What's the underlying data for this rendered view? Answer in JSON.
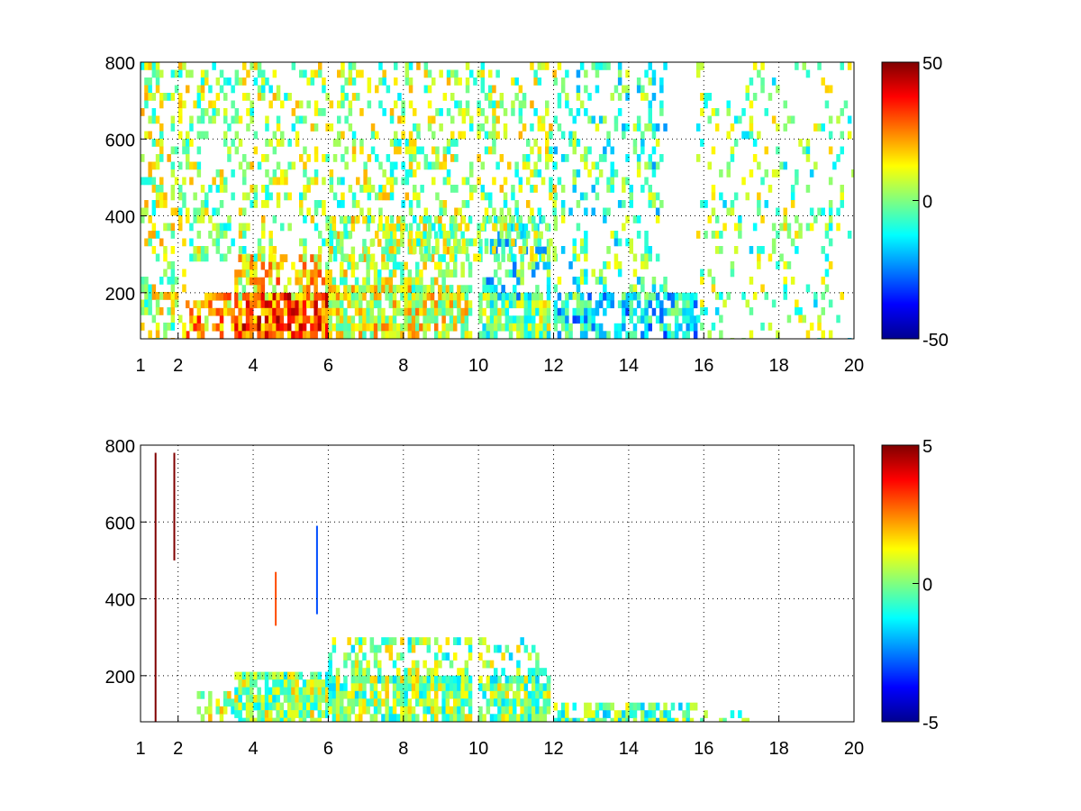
{
  "chart_data": [
    {
      "type": "heatmap",
      "title": "",
      "xlabel": "",
      "ylabel": "",
      "xlim": [
        1,
        20
      ],
      "ylim": [
        80,
        800
      ],
      "x_ticks": [
        1,
        2,
        4,
        6,
        8,
        10,
        12,
        14,
        16,
        18,
        20
      ],
      "y_ticks": [
        200,
        400,
        600,
        800
      ],
      "grid": true,
      "colormap": "jet",
      "colorbar": {
        "clim": [
          -50,
          50
        ],
        "ticks": [
          50,
          0,
          -50
        ]
      },
      "description_level": 50,
      "regions": [
        {
          "x": [
            2.2,
            3.5
          ],
          "y": [
            80,
            200
          ],
          "value": 20,
          "density": 0.6
        },
        {
          "x": [
            3.5,
            6.0
          ],
          "y": [
            80,
            200
          ],
          "value": 30,
          "density": 0.85
        },
        {
          "x": [
            3.5,
            6.0
          ],
          "y": [
            200,
            300
          ],
          "value": 15,
          "density": 0.6
        },
        {
          "x": [
            6.0,
            9.8
          ],
          "y": [
            80,
            220
          ],
          "value": 10,
          "density": 0.85
        },
        {
          "x": [
            6.0,
            9.8
          ],
          "y": [
            220,
            400
          ],
          "value": 5,
          "density": 0.5
        },
        {
          "x": [
            10.0,
            11.9
          ],
          "y": [
            80,
            200
          ],
          "value": 0,
          "density": 0.85
        },
        {
          "x": [
            10.0,
            11.9
          ],
          "y": [
            200,
            400
          ],
          "value": -10,
          "density": 0.5
        },
        {
          "x": [
            12.0,
            15.8
          ],
          "y": [
            80,
            200
          ],
          "value": -15,
          "density": 0.7
        },
        {
          "x": [
            12.0,
            15.0
          ],
          "y": [
            200,
            800
          ],
          "value": -5,
          "density": 0.25
        },
        {
          "x": [
            15.8,
            20.0
          ],
          "y": [
            80,
            800
          ],
          "value": 0,
          "density": 0.15
        },
        {
          "x": [
            1.0,
            2.2
          ],
          "y": [
            80,
            800
          ],
          "value": 5,
          "density": 0.35
        },
        {
          "x": [
            2.2,
            12.0
          ],
          "y": [
            300,
            800
          ],
          "value": 3,
          "density": 0.3
        }
      ]
    },
    {
      "type": "heatmap",
      "title": "",
      "xlabel": "",
      "ylabel": "",
      "xlim": [
        1,
        20
      ],
      "ylim": [
        80,
        800
      ],
      "x_ticks": [
        1,
        2,
        4,
        6,
        8,
        10,
        12,
        14,
        16,
        18,
        20
      ],
      "y_ticks": [
        200,
        400,
        600,
        800
      ],
      "grid": true,
      "colormap": "jet",
      "colorbar": {
        "clim": [
          -5,
          5
        ],
        "ticks": [
          5,
          0,
          -5
        ]
      },
      "regions": [
        {
          "x": [
            2.5,
            3.5
          ],
          "y": [
            80,
            160
          ],
          "value": 0.3,
          "density": 0.5
        },
        {
          "x": [
            3.5,
            6.0
          ],
          "y": [
            80,
            210
          ],
          "value": 0.2,
          "density": 0.85
        },
        {
          "x": [
            6.0,
            9.8
          ],
          "y": [
            80,
            200
          ],
          "value": 0.1,
          "density": 0.85
        },
        {
          "x": [
            6.0,
            9.8
          ],
          "y": [
            200,
            300
          ],
          "value": 0.1,
          "density": 0.4
        },
        {
          "x": [
            10.0,
            11.9
          ],
          "y": [
            80,
            200
          ],
          "value": 0.0,
          "density": 0.8
        },
        {
          "x": [
            10.0,
            11.9
          ],
          "y": [
            200,
            300
          ],
          "value": 0.0,
          "density": 0.3
        },
        {
          "x": [
            12.0,
            15.8
          ],
          "y": [
            80,
            130
          ],
          "value": -0.2,
          "density": 0.7
        },
        {
          "x": [
            15.8,
            17.2
          ],
          "y": [
            80,
            110
          ],
          "value": 0.0,
          "density": 0.4
        }
      ],
      "streaks": [
        {
          "x": 1.4,
          "y": [
            80,
            780
          ],
          "value": 5
        },
        {
          "x": 1.9,
          "y": [
            500,
            780
          ],
          "value": 5
        },
        {
          "x": 5.7,
          "y": [
            360,
            590
          ],
          "value": -3
        },
        {
          "x": 4.6,
          "y": [
            330,
            470
          ],
          "value": 3
        }
      ]
    }
  ]
}
